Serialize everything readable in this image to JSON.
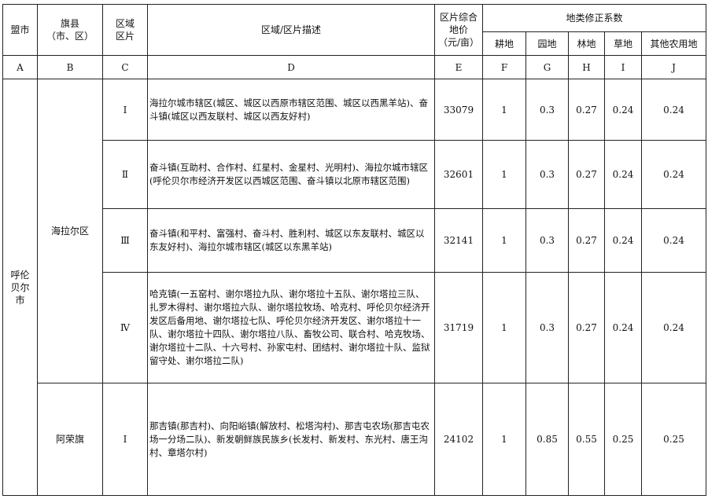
{
  "header": {
    "league_city": "盟市",
    "county": "旗县\n（市、区）",
    "zone": "区域\n区片",
    "description": "区域/区片描述",
    "price": "区片综合\n地价\n（元/亩）",
    "coef_group": "地类修正系数",
    "coef": [
      "耕地",
      "园地",
      "林地",
      "草地",
      "其他农用地"
    ]
  },
  "letters": [
    "A",
    "B",
    "C",
    "D",
    "E",
    "F",
    "G",
    "H",
    "I",
    "J"
  ],
  "league_city_value": "呼伦贝尔市",
  "rows": [
    {
      "county": "海拉尔区",
      "zone": "Ⅰ",
      "description": "海拉尔城市辖区(城区、城区以西原市辖区范围、城区以西黑羊站)、奋斗镇(城区以西友联村、城区以西友好村)",
      "price": "33079",
      "coef": [
        "1",
        "0.3",
        "0.27",
        "0.24",
        "0.24"
      ]
    },
    {
      "county": "",
      "zone": "Ⅱ",
      "description": "奋斗镇(互助村、合作村、红星村、金星村、光明村)、海拉尔城市辖区(呼伦贝尔市经济开发区以西城区范围、奋斗镇以北原市辖区范围)",
      "price": "32601",
      "coef": [
        "1",
        "0.3",
        "0.27",
        "0.24",
        "0.24"
      ]
    },
    {
      "county": "",
      "zone": "Ⅲ",
      "description": "奋斗镇(和平村、富强村、奋斗村、胜利村、城区以东友联村、城区以东友好村)、海拉尔城市辖区(城区以东黑羊站)",
      "price": "32141",
      "coef": [
        "1",
        "0.3",
        "0.27",
        "0.24",
        "0.24"
      ]
    },
    {
      "county": "",
      "zone": "Ⅳ",
      "description": "哈克镇(一五窑村、谢尔塔拉九队、谢尔塔拉十五队、谢尔塔拉三队、扎罗木得村、谢尔塔拉六队、谢尔塔拉牧场、哈克村、呼伦贝尔经济开发区后备用地、谢尔塔拉七队、呼伦贝尔经济开发区、谢尔塔拉十一队、谢尔塔拉十四队、谢尔塔拉八队、畜牧公司、联合村、哈克牧场、谢尔塔拉十二队、十六号村、孙家屯村、团结村、谢尔塔拉十队、监狱留守处、谢尔塔拉二队)",
      "price": "31719",
      "coef": [
        "1",
        "0.3",
        "0.27",
        "0.24",
        "0.24"
      ]
    },
    {
      "county": "阿荣旗",
      "zone": "Ⅰ",
      "description": "那吉镇(那吉村)、向阳峪镇(解放村、松塔沟村)、那吉屯农场(那吉屯农场一分场二队)、新发朝鲜族民族乡(长发村、新发村、东光村、唐王沟村、章塔尔村)",
      "price": "24102",
      "coef": [
        "1",
        "0.85",
        "0.55",
        "0.25",
        "0.25"
      ]
    }
  ]
}
